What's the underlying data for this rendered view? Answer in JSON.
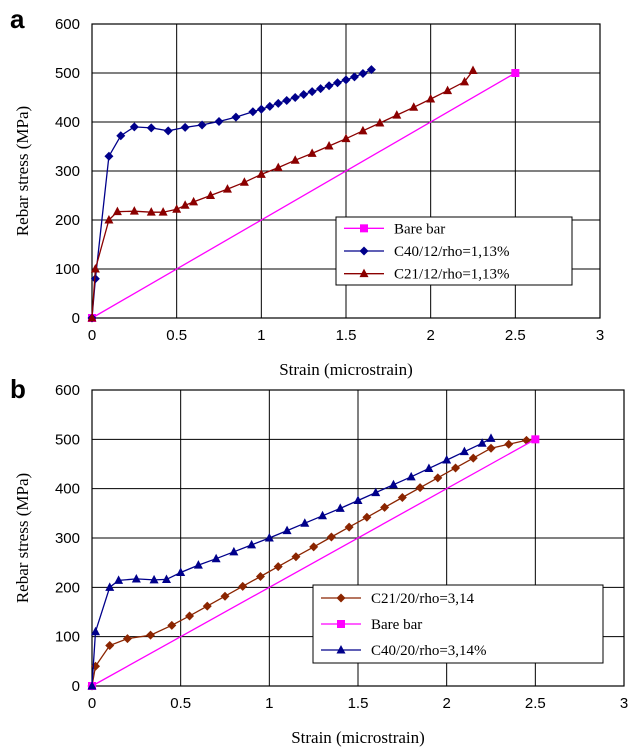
{
  "chart_data": [
    {
      "panel_label": "a",
      "type": "line",
      "xlabel": "Strain (microstrain)",
      "ylabel": "Rebar stress (MPa)",
      "xlim": [
        0,
        3
      ],
      "ylim": [
        0,
        600
      ],
      "xticks": [
        0,
        0.5,
        1,
        1.5,
        2,
        2.5,
        3
      ],
      "xtick_labels": [
        "0",
        "0.5",
        "1",
        "1.5",
        "2",
        "2.5",
        "3"
      ],
      "yticks": [
        0,
        100,
        200,
        300,
        400,
        500,
        600
      ],
      "ytick_labels": [
        "0",
        "100",
        "200",
        "300",
        "400",
        "500",
        "600"
      ],
      "grid": true,
      "legend_position": "lower-right",
      "series": [
        {
          "name": "Bare bar",
          "color": "#ff00ff",
          "marker": "square",
          "x": [
            0,
            2.5
          ],
          "y": [
            0,
            500
          ]
        },
        {
          "name": "C40/12/rho=1,13%",
          "color": "#00008b",
          "marker": "diamond",
          "x": [
            0,
            0.02,
            0.1,
            0.17,
            0.25,
            0.35,
            0.45,
            0.55,
            0.65,
            0.75,
            0.85,
            0.95,
            1.0,
            1.05,
            1.1,
            1.15,
            1.2,
            1.25,
            1.3,
            1.35,
            1.4,
            1.45,
            1.5,
            1.55,
            1.6,
            1.65
          ],
          "y": [
            0,
            80,
            330,
            372,
            390,
            388,
            382,
            389,
            394,
            401,
            410,
            421,
            426,
            432,
            438,
            444,
            450,
            456,
            462,
            468,
            474,
            480,
            486,
            492,
            499,
            507
          ]
        },
        {
          "name": "C21/12/rho=1,13%",
          "color": "#8b0000",
          "marker": "triangle",
          "x": [
            0,
            0.02,
            0.1,
            0.15,
            0.25,
            0.35,
            0.42,
            0.5,
            0.55,
            0.6,
            0.7,
            0.8,
            0.9,
            1.0,
            1.1,
            1.2,
            1.3,
            1.4,
            1.5,
            1.6,
            1.7,
            1.8,
            1.9,
            2.0,
            2.1,
            2.2,
            2.25
          ],
          "y": [
            0,
            100,
            200,
            217,
            218,
            216,
            216,
            222,
            230,
            237,
            250,
            263,
            277,
            293,
            307,
            322,
            336,
            351,
            366,
            382,
            398,
            414,
            430,
            447,
            464,
            482,
            505
          ]
        }
      ]
    },
    {
      "panel_label": "b",
      "type": "line",
      "xlabel": "Strain (microstrain)",
      "ylabel": "Rebar stress (MPa)",
      "xlim": [
        0,
        3
      ],
      "ylim": [
        0,
        600
      ],
      "xticks": [
        0,
        0.5,
        1,
        1.5,
        2,
        2.5,
        3
      ],
      "xtick_labels": [
        "0",
        "0.5",
        "1",
        "1.5",
        "2",
        "2.5",
        "3"
      ],
      "yticks": [
        0,
        100,
        200,
        300,
        400,
        500,
        600
      ],
      "ytick_labels": [
        "0",
        "100",
        "200",
        "300",
        "400",
        "500",
        "600"
      ],
      "grid": true,
      "legend_position": "lower-right",
      "series": [
        {
          "name": "C21/20/rho=3,14",
          "color": "#8b2500",
          "marker": "diamond",
          "x": [
            0,
            0.02,
            0.1,
            0.2,
            0.33,
            0.45,
            0.55,
            0.65,
            0.75,
            0.85,
            0.95,
            1.05,
            1.15,
            1.25,
            1.35,
            1.45,
            1.55,
            1.65,
            1.75,
            1.85,
            1.95,
            2.05,
            2.15,
            2.25,
            2.35,
            2.45,
            2.5
          ],
          "y": [
            0,
            40,
            82,
            96,
            103,
            123,
            142,
            162,
            182,
            202,
            222,
            242,
            262,
            282,
            302,
            322,
            342,
            362,
            382,
            402,
            422,
            442,
            462,
            482,
            490,
            498,
            500
          ]
        },
        {
          "name": "Bare bar",
          "color": "#ff00ff",
          "marker": "square",
          "x": [
            0,
            2.5
          ],
          "y": [
            0,
            500
          ]
        },
        {
          "name": "C40/20/rho=3,14%",
          "color": "#00008b",
          "marker": "triangle",
          "x": [
            0,
            0.02,
            0.1,
            0.15,
            0.25,
            0.35,
            0.42,
            0.5,
            0.6,
            0.7,
            0.8,
            0.9,
            1.0,
            1.1,
            1.2,
            1.3,
            1.4,
            1.5,
            1.6,
            1.7,
            1.8,
            1.9,
            2.0,
            2.1,
            2.2,
            2.25
          ],
          "y": [
            0,
            110,
            200,
            214,
            217,
            215,
            216,
            230,
            245,
            258,
            272,
            286,
            300,
            315,
            330,
            345,
            360,
            376,
            392,
            408,
            424,
            441,
            458,
            475,
            492,
            502
          ]
        }
      ]
    }
  ]
}
